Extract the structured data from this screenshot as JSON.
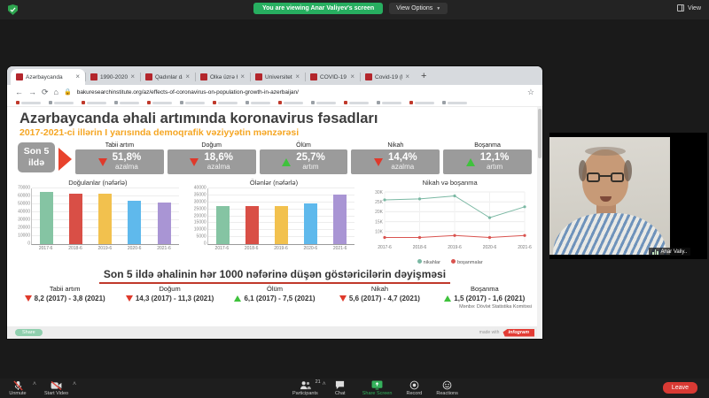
{
  "zoom_top": {
    "viewing_banner": "You are viewing Anar Valiyev's screen",
    "view_options": "View Options",
    "view_button": "View"
  },
  "browser": {
    "tabs": [
      {
        "title": "Azərbaycanda"
      },
      {
        "title": "1990-2020-ci i"
      },
      {
        "title": "Qadınlar dah"
      },
      {
        "title": "Ölkə üzrə hər"
      },
      {
        "title": "Universitetlər"
      },
      {
        "title": "COVID-19 pa"
      },
      {
        "title": "Covid-19 (ko"
      }
    ],
    "new_tab_glyph": "+",
    "url": "bakuresearchinstitute.org/az/effects-of-coronavirus-on-population-growth-in-azerbaijan/"
  },
  "infographic": {
    "title": "Azərbaycanda əhali artımında koronavirus fəsadları",
    "subtitle": "2017-2021-ci illərin I yarısında demoqrafik vəziyyətin mənzərəsi",
    "period_label": "Son 5 ildə",
    "stats": [
      {
        "header": "Tabii artım",
        "direction": "down",
        "value": "51,8%",
        "change": "azalma"
      },
      {
        "header": "Doğum",
        "direction": "down",
        "value": "18,6%",
        "change": "azalma"
      },
      {
        "header": "Ölüm",
        "direction": "up",
        "value": "25,7%",
        "change": "artım"
      },
      {
        "header": "Nikah",
        "direction": "down",
        "value": "14,4%",
        "change": "azalma"
      },
      {
        "header": "Boşanma",
        "direction": "up",
        "value": "12,1%",
        "change": "artım"
      }
    ],
    "bottom_title": "Son 5 ildə əhalinin hər 1000 nəfərinə düşən göstəricilərin dəyişməsi",
    "bottom_stats": [
      {
        "header": "Tabii artım",
        "direction": "down",
        "value": "8,2 (2017) - 3,8 (2021)"
      },
      {
        "header": "Doğum",
        "direction": "down",
        "value": "14,3 (2017) - 11,3 (2021)"
      },
      {
        "header": "Ölüm",
        "direction": "up",
        "value": "6,1 (2017) - 7,5 (2021)"
      },
      {
        "header": "Nikah",
        "direction": "down",
        "value": "5,6 (2017) - 4,7 (2021)"
      },
      {
        "header": "Boşanma",
        "direction": "up",
        "value": "1,5 (2017) - 1,6 (2021)"
      }
    ],
    "source": "Mənbə: Dövlət Statistika Komitəsi",
    "share_label": "Share",
    "made_with": "made with",
    "infogram_label": "infogram",
    "accent_colors": {
      "red": "#df392b",
      "green": "#3fc23c",
      "orange": "#f5a623",
      "box_gray": "#9b9b9b"
    }
  },
  "chart_data": [
    {
      "type": "bar",
      "title": "Doğulanlar (nəfərlə)",
      "categories": [
        "2017-6",
        "2018-6",
        "2019-6",
        "2020-6",
        "2021-6"
      ],
      "values": [
        66000,
        63000,
        63000,
        55000,
        52000
      ],
      "bar_colors": [
        "#85c4a3",
        "#d94f46",
        "#f2c14e",
        "#5fb9ec",
        "#a995d4"
      ],
      "ylim": [
        0,
        70000
      ],
      "ytick_step": 10000,
      "grid": true
    },
    {
      "type": "bar",
      "title": "Ölənlər (nəfərlə)",
      "categories": [
        "2017-6",
        "2018-6",
        "2019-6",
        "2020-6",
        "2021-6"
      ],
      "values": [
        27500,
        27500,
        27000,
        29000,
        35500
      ],
      "bar_colors": [
        "#85c4a3",
        "#d94f46",
        "#f2c14e",
        "#5fb9ec",
        "#a995d4"
      ],
      "ylim": [
        0,
        40000
      ],
      "ytick_step": 5000,
      "grid": true
    },
    {
      "type": "line",
      "title": "Nikah və boşanma",
      "categories": [
        "2017-6",
        "2018-6",
        "2019-6",
        "2020-6",
        "2021-6"
      ],
      "series": [
        {
          "name": "nikahlar",
          "color": "#7ab8a3",
          "values": [
            26000,
            26500,
            28000,
            17000,
            22500
          ]
        },
        {
          "name": "boşanmalar",
          "color": "#d9534f",
          "values": [
            7000,
            7000,
            8000,
            7000,
            8000
          ]
        }
      ],
      "ylim": [
        5000,
        30000
      ],
      "yticks": [
        {
          "v": 10000,
          "label": "10K"
        },
        {
          "v": 15000,
          "label": "15K"
        },
        {
          "v": 20000,
          "label": "20K"
        },
        {
          "v": 25000,
          "label": "25K"
        },
        {
          "v": 30000,
          "label": "30K"
        }
      ],
      "legend_position": "bottom",
      "grid": true
    }
  ],
  "video": {
    "name_label": "Anar Valiy.."
  },
  "toolbar": {
    "items": [
      {
        "label": "Unmute",
        "icon": "mic-muted-icon",
        "caret": true
      },
      {
        "label": "Start Video",
        "icon": "camera-off-icon",
        "caret": true
      },
      {
        "label": "Participants",
        "icon": "participants-icon",
        "caret": true,
        "badge": "21"
      },
      {
        "label": "Chat",
        "icon": "chat-icon"
      },
      {
        "label": "Share Screen",
        "icon": "share-screen-icon",
        "accent": true
      },
      {
        "label": "Record",
        "icon": "record-icon"
      },
      {
        "label": "Reactions",
        "icon": "reactions-icon"
      }
    ],
    "leave_label": "Leave"
  }
}
